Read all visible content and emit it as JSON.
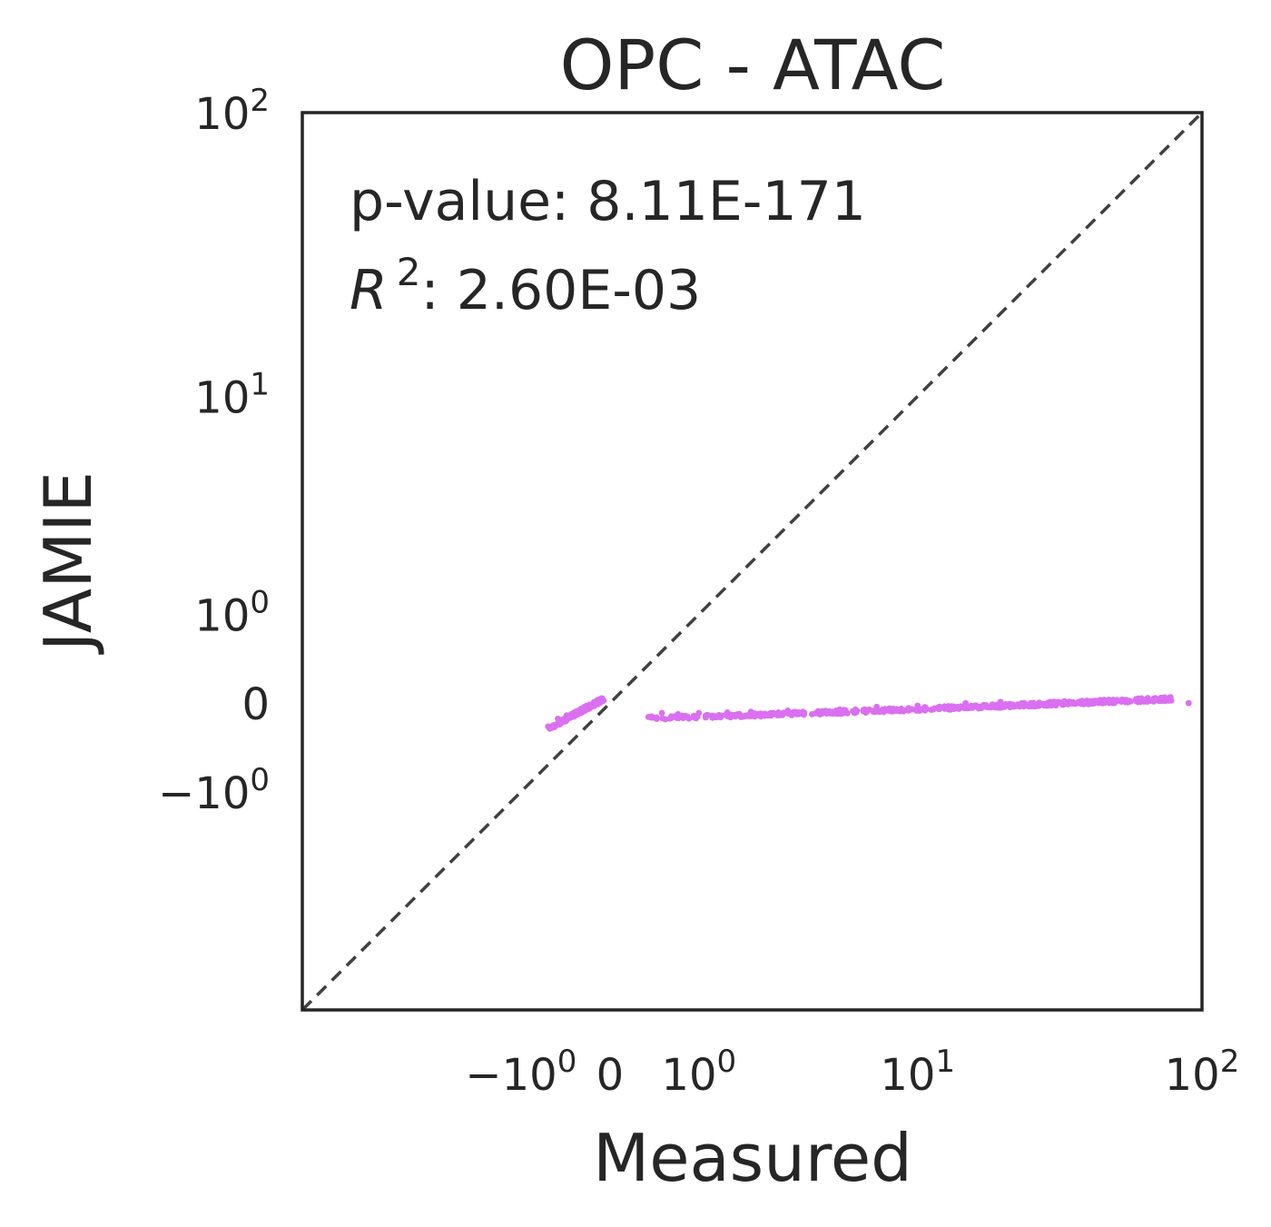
{
  "chart_data": {
    "type": "scatter",
    "title": "OPC - ATAC",
    "xlabel": "Measured",
    "ylabel": "JAMIE",
    "scale": "symlog",
    "xlim": [
      -10,
      100
    ],
    "ylim": [
      -10,
      100
    ],
    "x_ticks": [
      {
        "value": -1,
        "label": "−10",
        "sup": "0"
      },
      {
        "value": 0,
        "label": "0",
        "sup": ""
      },
      {
        "value": 1,
        "label": "10",
        "sup": "0"
      },
      {
        "value": 10,
        "label": "10",
        "sup": "1"
      },
      {
        "value": 100,
        "label": "10",
        "sup": "2"
      }
    ],
    "y_ticks": [
      {
        "value": -1,
        "label": "−10",
        "sup": "0"
      },
      {
        "value": 0,
        "label": "0",
        "sup": ""
      },
      {
        "value": 1,
        "label": "10",
        "sup": "0"
      },
      {
        "value": 10,
        "label": "10",
        "sup": "1"
      },
      {
        "value": 100,
        "label": "10",
        "sup": "2"
      }
    ],
    "reference_line": {
      "type": "identity",
      "style": "dashed",
      "color": "#404040"
    },
    "point_color": "#da70f0",
    "grid": false,
    "annotations": {
      "pvalue": "p-value: 8.11E-171",
      "r2_symbol": "R",
      "r2_sup": "2",
      "r2_value": ": 2.60E-03"
    },
    "clusters": [
      {
        "x_range": [
          -0.6,
          -0.05
        ],
        "y_range": [
          -0.22,
          0.03
        ],
        "n": 220
      },
      {
        "x_range": [
          0.3,
          80
        ],
        "y_range": [
          -0.12,
          0.04
        ],
        "n": 520
      }
    ],
    "sample_points": [
      [
        -0.62,
        -0.2
      ],
      [
        -0.5,
        -0.13
      ],
      [
        -0.4,
        -0.1
      ],
      [
        -0.3,
        -0.07
      ],
      [
        -0.2,
        -0.04
      ],
      [
        -0.1,
        0.0
      ],
      [
        -0.05,
        0.02
      ],
      [
        0.38,
        -0.12
      ],
      [
        0.5,
        -0.08
      ],
      [
        0.7,
        -0.09
      ],
      [
        1.0,
        -0.08
      ],
      [
        1.5,
        -0.075
      ],
      [
        2.0,
        -0.07
      ],
      [
        3.0,
        -0.06
      ],
      [
        5.0,
        -0.05
      ],
      [
        7.0,
        -0.03
      ],
      [
        10.0,
        -0.02
      ],
      [
        15.0,
        0.0
      ],
      [
        20.0,
        0.01
      ],
      [
        30.0,
        0.01
      ],
      [
        50.0,
        0.0
      ],
      [
        90.0,
        0.0
      ]
    ]
  }
}
